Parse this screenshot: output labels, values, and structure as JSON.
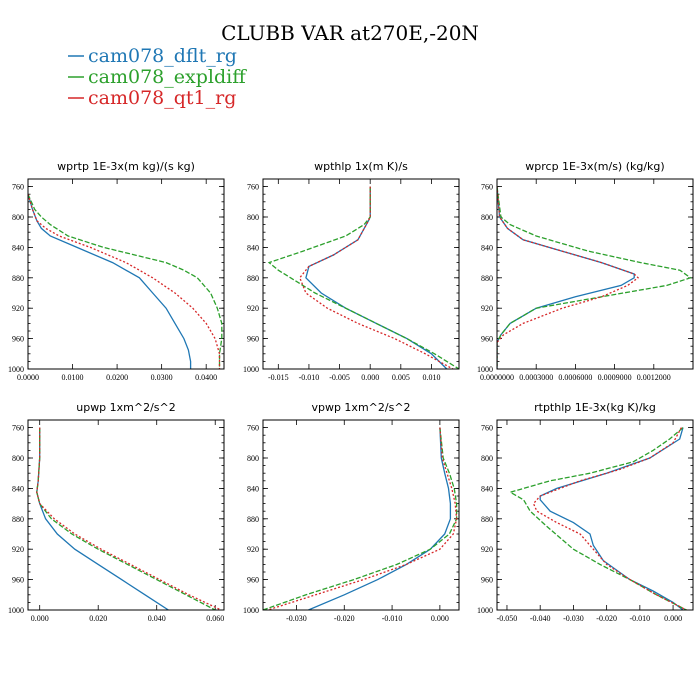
{
  "title": "CLUBB VAR at270E,-20N",
  "legend": [
    {
      "label": "cam078_dflt_rg",
      "color": "#1f77b4",
      "dash": ""
    },
    {
      "label": "cam078_expldiff",
      "color": "#2ca02c",
      "dash": "5,2"
    },
    {
      "label": "cam078_qt1_rg",
      "color": "#d62728",
      "dash": "2,2"
    }
  ],
  "chart_data": [
    {
      "type": "line",
      "title": "wprtp  1E-3x(m kg)/(s kg)",
      "xlim": [
        0,
        0.044
      ],
      "ylim": [
        1000,
        750
      ],
      "xticks": [
        0,
        0.01,
        0.02,
        0.03,
        0.04
      ],
      "xtick_labels": [
        "0.0000",
        "0.0100",
        "0.0200",
        "0.0300",
        "0.0400"
      ],
      "yticks": [
        760,
        800,
        840,
        880,
        920,
        960,
        1000
      ],
      "series": [
        {
          "name": "cam078_dflt_rg",
          "y": [
            770,
            790,
            805,
            815,
            825,
            840,
            860,
            880,
            900,
            920,
            940,
            960,
            975,
            990,
            1000
          ],
          "x": [
            0.0,
            0.001,
            0.002,
            0.003,
            0.005,
            0.011,
            0.019,
            0.025,
            0.028,
            0.031,
            0.033,
            0.035,
            0.036,
            0.0365,
            0.0365
          ]
        },
        {
          "name": "cam078_expldiff",
          "y": [
            770,
            790,
            800,
            810,
            825,
            840,
            860,
            870,
            880,
            900,
            920,
            940,
            960,
            980,
            1000
          ],
          "x": [
            0.0,
            0.0015,
            0.003,
            0.005,
            0.009,
            0.017,
            0.031,
            0.035,
            0.038,
            0.041,
            0.0425,
            0.0435,
            0.0435,
            0.043,
            0.043
          ]
        },
        {
          "name": "cam078_qt1_rg",
          "y": [
            770,
            790,
            805,
            815,
            825,
            840,
            860,
            880,
            900,
            920,
            940,
            960,
            980,
            1000
          ],
          "x": [
            0.0,
            0.001,
            0.002,
            0.004,
            0.007,
            0.014,
            0.022,
            0.028,
            0.033,
            0.037,
            0.04,
            0.042,
            0.043,
            0.043
          ]
        }
      ]
    },
    {
      "type": "line",
      "title": "wpthlp  1x(m K)/s",
      "xlim": [
        -0.0175,
        0.0145
      ],
      "ylim": [
        1000,
        750
      ],
      "xticks": [
        -0.015,
        -0.01,
        -0.005,
        0,
        0.005,
        0.01
      ],
      "xtick_labels": [
        "-0.015",
        "-0.010",
        "-0.005",
        "0.000",
        "0.005",
        "0.010"
      ],
      "yticks": [
        760,
        800,
        840,
        880,
        920,
        960,
        1000
      ],
      "series": [
        {
          "name": "cam078_dflt_rg",
          "y": [
            760,
            800,
            805,
            830,
            850,
            865,
            880,
            900,
            920,
            940,
            960,
            980,
            1000
          ],
          "x": [
            0.0,
            0.0,
            -0.0003,
            -0.002,
            -0.006,
            -0.01,
            -0.0105,
            -0.008,
            -0.004,
            0.001,
            0.006,
            0.01,
            0.0125
          ]
        },
        {
          "name": "cam078_expldiff",
          "y": [
            760,
            800,
            810,
            825,
            845,
            860,
            870,
            880,
            900,
            920,
            940,
            960,
            980,
            1000
          ],
          "x": [
            0.0,
            0.0,
            -0.001,
            -0.004,
            -0.011,
            -0.0165,
            -0.015,
            -0.013,
            -0.009,
            -0.004,
            0.001,
            0.006,
            0.0105,
            0.0145
          ]
        },
        {
          "name": "cam078_qt1_rg",
          "y": [
            760,
            800,
            805,
            830,
            850,
            865,
            880,
            900,
            920,
            940,
            960,
            980,
            1000
          ],
          "x": [
            0.0,
            0.0,
            -0.0003,
            -0.002,
            -0.006,
            -0.01,
            -0.0115,
            -0.0105,
            -0.007,
            -0.002,
            0.004,
            0.009,
            0.0135
          ]
        }
      ]
    },
    {
      "type": "line",
      "title": "wprcp  1E-3x(m/s) (kg/kg)",
      "xlim": [
        0,
        0.0015
      ],
      "ylim": [
        1000,
        750
      ],
      "xticks": [
        0,
        0.0003,
        0.0006,
        0.0009,
        0.0012
      ],
      "xtick_labels": [
        "0.0000000",
        "0.0003000",
        "0.0006000",
        "0.0009000",
        "0.0012000"
      ],
      "yticks": [
        760,
        800,
        840,
        880,
        920,
        960,
        1000
      ],
      "series": [
        {
          "name": "cam078_dflt_rg",
          "y": [
            760,
            800,
            815,
            830,
            845,
            860,
            875,
            880,
            890,
            905,
            920,
            940,
            955,
            965,
            1000
          ],
          "x": [
            0.0,
            2e-05,
            8e-05,
            0.0002,
            0.0005,
            0.0008,
            0.00105,
            0.00105,
            0.00095,
            0.0006,
            0.0003,
            0.0001,
            3e-05,
            0.0,
            0.0
          ]
        },
        {
          "name": "cam078_expldiff",
          "y": [
            760,
            800,
            810,
            825,
            845,
            860,
            870,
            880,
            890,
            905,
            920,
            940,
            955,
            965,
            1000
          ],
          "x": [
            0.0,
            3e-05,
            0.0001,
            0.0003,
            0.0007,
            0.0011,
            0.0014,
            0.00148,
            0.0013,
            0.0008,
            0.0003,
            0.0001,
            3e-05,
            0.0,
            0.0
          ]
        },
        {
          "name": "cam078_qt1_rg",
          "y": [
            760,
            800,
            815,
            830,
            845,
            860,
            875,
            880,
            890,
            905,
            920,
            940,
            955,
            965,
            1000
          ],
          "x": [
            0.0,
            2e-05,
            8e-05,
            0.0002,
            0.0005,
            0.0008,
            0.00105,
            0.00108,
            0.001,
            0.0008,
            0.0005,
            0.0002,
            5e-05,
            0.0,
            0.0
          ]
        }
      ]
    },
    {
      "type": "line",
      "title": "upwp  1xm^2/s^2",
      "xlim": [
        -0.004,
        0.063
      ],
      "ylim": [
        1000,
        750
      ],
      "xticks": [
        0,
        0.02,
        0.04,
        0.06
      ],
      "xtick_labels": [
        "0.000",
        "0.020",
        "0.040",
        "0.060"
      ],
      "yticks": [
        760,
        800,
        840,
        880,
        920,
        960,
        1000
      ],
      "series": [
        {
          "name": "cam078_dflt_rg",
          "y": [
            760,
            800,
            830,
            845,
            860,
            880,
            900,
            920,
            940,
            960,
            980,
            1000
          ],
          "x": [
            0.0,
            0.0,
            -0.0005,
            -0.001,
            0.0,
            0.002,
            0.006,
            0.012,
            0.02,
            0.028,
            0.036,
            0.044
          ]
        },
        {
          "name": "cam078_expldiff",
          "y": [
            760,
            800,
            830,
            845,
            860,
            880,
            900,
            920,
            940,
            960,
            980,
            1000
          ],
          "x": [
            0.0,
            0.0,
            -0.0005,
            -0.001,
            0.0,
            0.004,
            0.011,
            0.02,
            0.03,
            0.04,
            0.05,
            0.06
          ]
        },
        {
          "name": "cam078_qt1_rg",
          "y": [
            760,
            800,
            830,
            845,
            860,
            880,
            900,
            920,
            940,
            960,
            980,
            1000
          ],
          "x": [
            0.0,
            0.0,
            -0.0005,
            -0.001,
            0.0,
            0.005,
            0.012,
            0.021,
            0.031,
            0.041,
            0.051,
            0.062
          ]
        }
      ]
    },
    {
      "type": "line",
      "title": "vpwp  1xm^2/s^2",
      "xlim": [
        -0.037,
        0.004
      ],
      "ylim": [
        1000,
        750
      ],
      "xticks": [
        -0.03,
        -0.02,
        -0.01,
        0
      ],
      "xtick_labels": [
        "-0.030",
        "-0.020",
        "-0.010",
        "0.000"
      ],
      "yticks": [
        760,
        800,
        840,
        880,
        920,
        960,
        1000
      ],
      "series": [
        {
          "name": "cam078_dflt_rg",
          "y": [
            760,
            800,
            820,
            840,
            860,
            880,
            900,
            920,
            940,
            960,
            980,
            1000
          ],
          "x": [
            0.0,
            0.0003,
            0.001,
            0.0018,
            0.0022,
            0.0022,
            0.001,
            -0.002,
            -0.007,
            -0.013,
            -0.02,
            -0.0275
          ]
        },
        {
          "name": "cam078_expldiff",
          "y": [
            760,
            800,
            820,
            840,
            860,
            880,
            900,
            920,
            940,
            960,
            980,
            1000
          ],
          "x": [
            0.0,
            0.0007,
            0.002,
            0.003,
            0.0035,
            0.0035,
            0.002,
            -0.002,
            -0.009,
            -0.018,
            -0.028,
            -0.037
          ]
        },
        {
          "name": "cam078_qt1_rg",
          "y": [
            760,
            800,
            820,
            840,
            860,
            880,
            900,
            920,
            940,
            960,
            980,
            1000
          ],
          "x": [
            0.0,
            0.0005,
            0.0015,
            0.0025,
            0.0032,
            0.0035,
            0.0028,
            0.0,
            -0.007,
            -0.016,
            -0.026,
            -0.036
          ]
        }
      ]
    },
    {
      "type": "line",
      "title": "rtpthlp  1E-3x(kg K)/kg",
      "xlim": [
        -0.053,
        0.006
      ],
      "ylim": [
        1000,
        750
      ],
      "xticks": [
        -0.05,
        -0.04,
        -0.03,
        -0.02,
        -0.01,
        0
      ],
      "xtick_labels": [
        "-0.050",
        "-0.040",
        "-0.030",
        "-0.020",
        "-0.010",
        "0.000"
      ],
      "yticks": [
        760,
        800,
        840,
        880,
        920,
        960,
        1000
      ],
      "series": [
        {
          "name": "cam078_dflt_rg",
          "y": [
            760,
            775,
            800,
            820,
            840,
            850,
            855,
            870,
            885,
            900,
            915,
            935,
            960,
            975,
            990,
            1000
          ],
          "x": [
            0.003,
            0.002,
            -0.007,
            -0.02,
            -0.035,
            -0.04,
            -0.04,
            -0.037,
            -0.03,
            -0.025,
            -0.024,
            -0.021,
            -0.013,
            -0.006,
            0.0,
            0.003
          ]
        },
        {
          "name": "cam078_expldiff",
          "y": [
            760,
            775,
            790,
            805,
            820,
            830,
            845,
            855,
            870,
            890,
            920,
            940,
            960,
            980,
            1000
          ],
          "x": [
            0.003,
            -0.001,
            -0.006,
            -0.012,
            -0.025,
            -0.037,
            -0.049,
            -0.045,
            -0.043,
            -0.038,
            -0.03,
            -0.022,
            -0.013,
            -0.005,
            0.004
          ]
        },
        {
          "name": "cam078_qt1_rg",
          "y": [
            760,
            780,
            800,
            815,
            830,
            850,
            860,
            870,
            885,
            900,
            920,
            940,
            960,
            980,
            1000
          ],
          "x": [
            0.0025,
            0.0,
            -0.007,
            -0.016,
            -0.028,
            -0.04,
            -0.042,
            -0.041,
            -0.035,
            -0.028,
            -0.024,
            -0.02,
            -0.013,
            -0.005,
            0.004
          ]
        }
      ]
    }
  ]
}
